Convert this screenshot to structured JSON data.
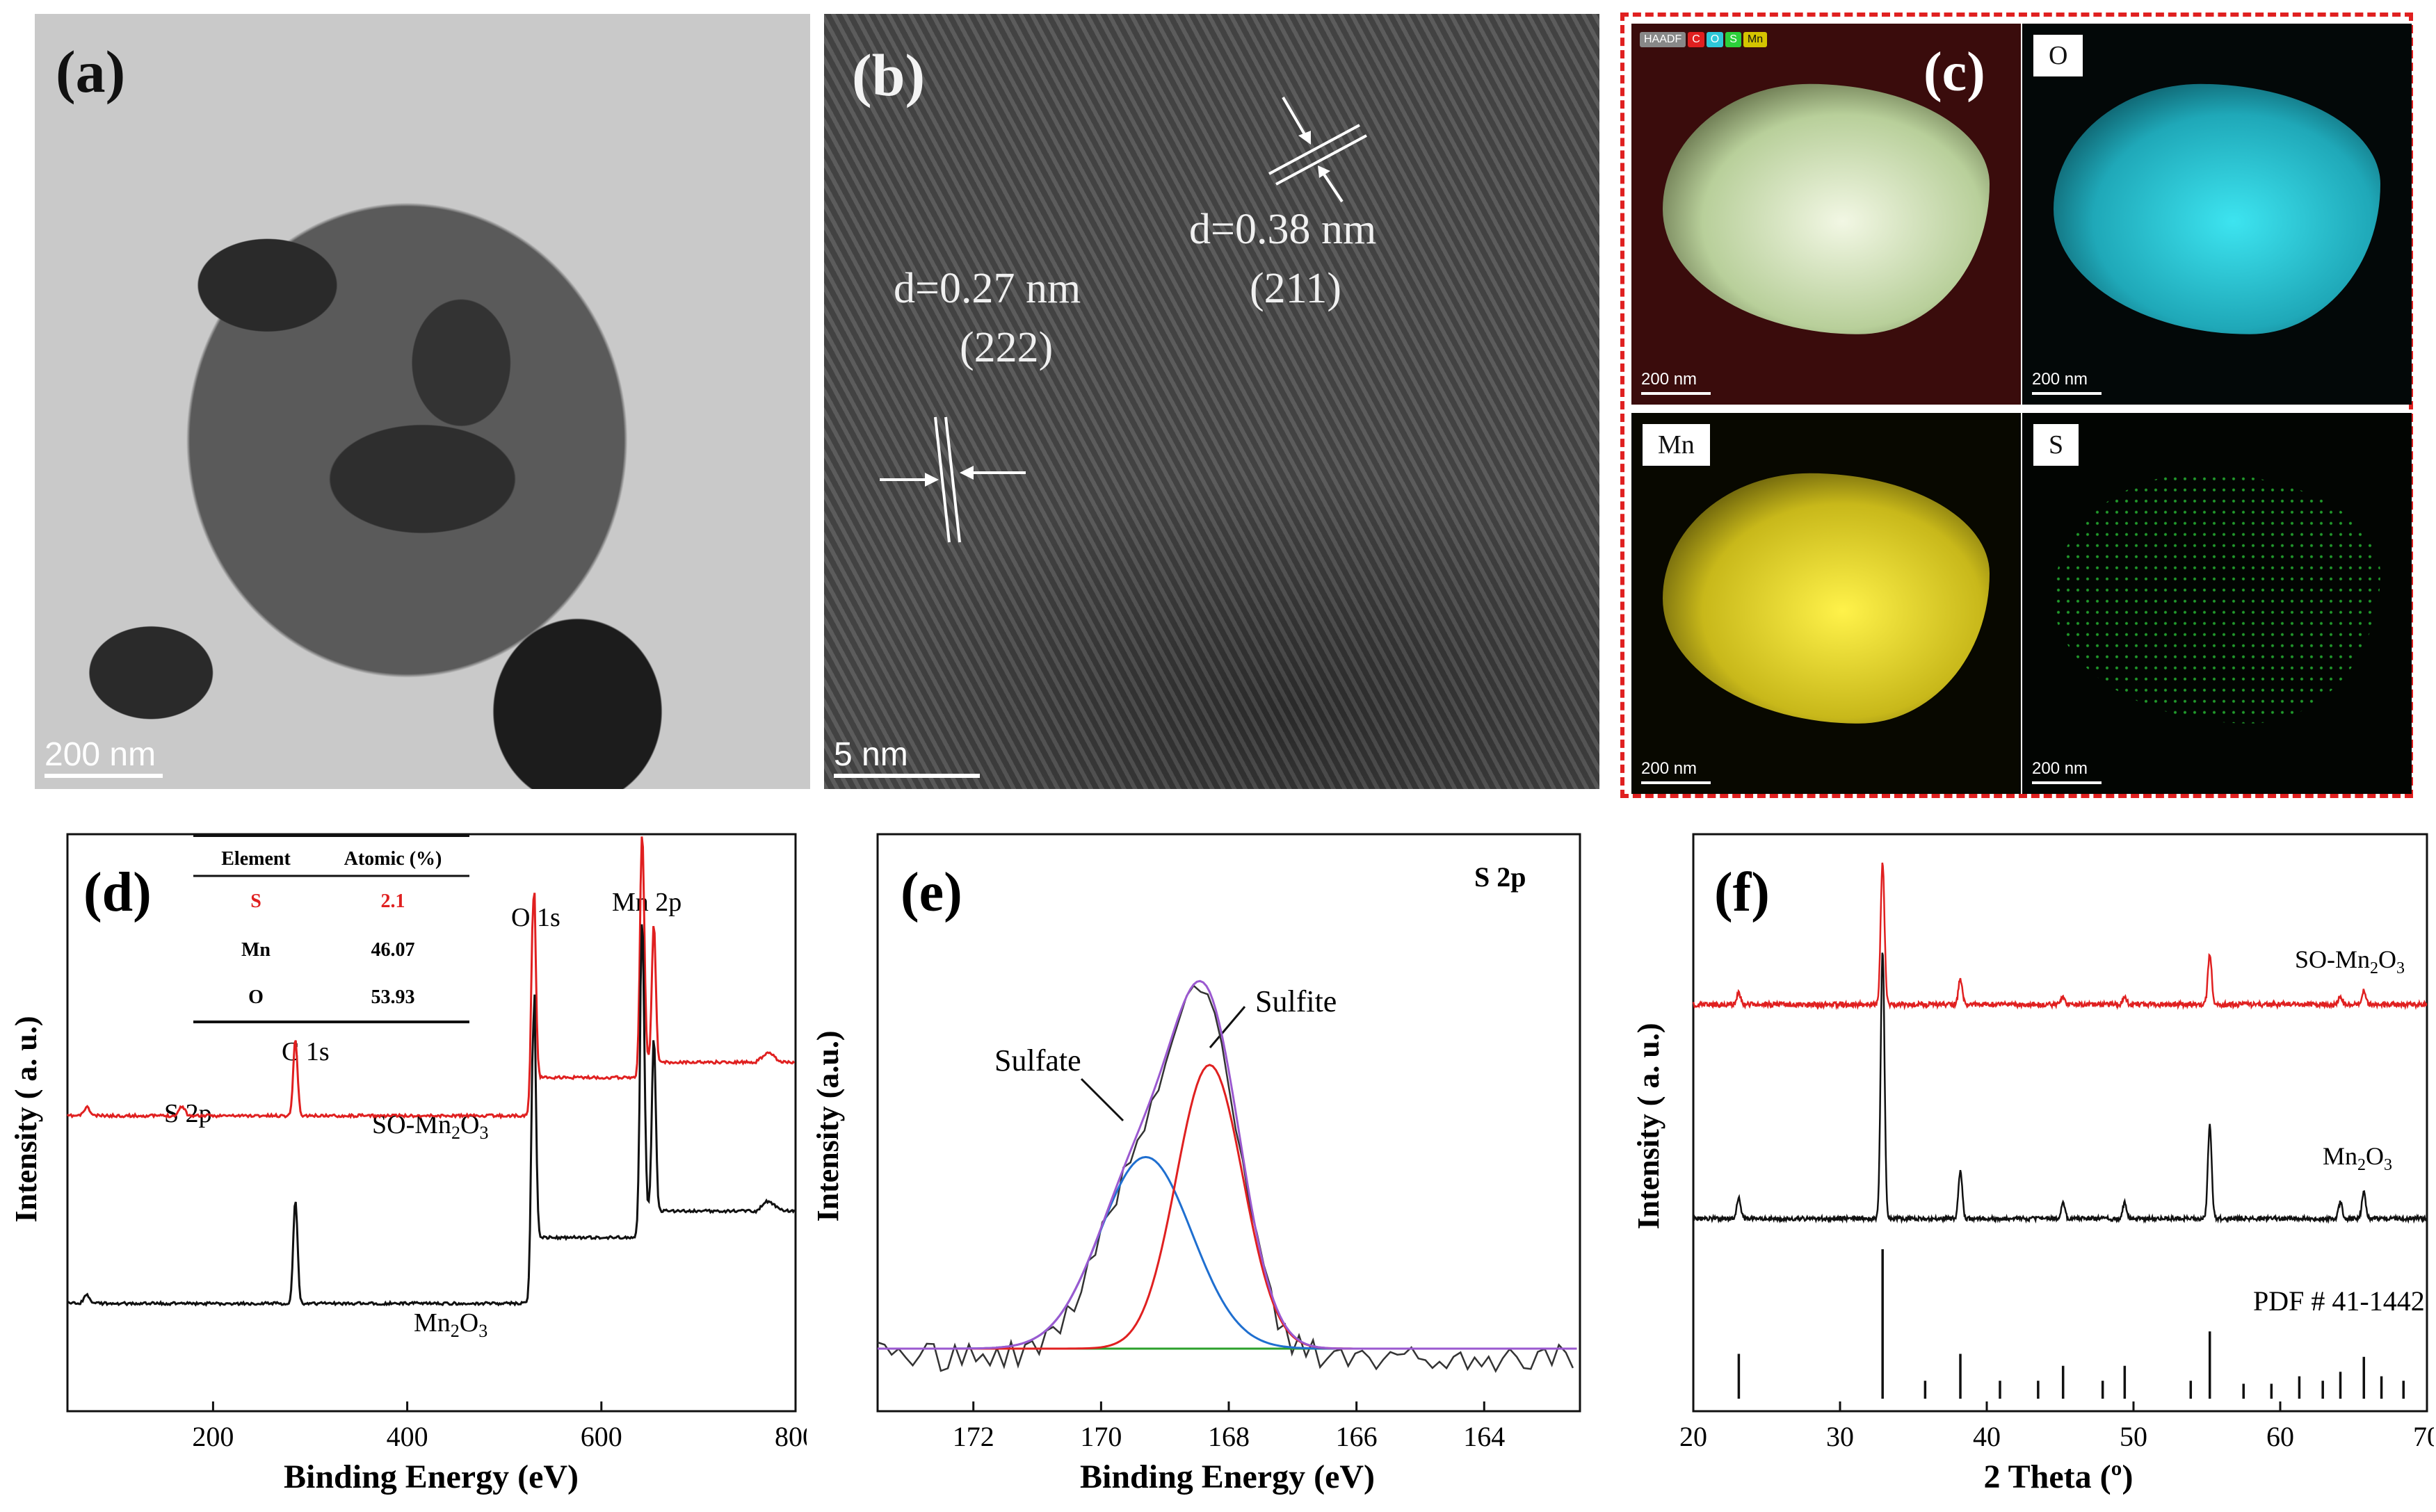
{
  "panel_a": {
    "label": "(a)",
    "scale": "200 nm"
  },
  "panel_b": {
    "label": "(b)",
    "scale": "5 nm",
    "d1": "d=0.27 nm",
    "hkl1": "(222)",
    "d2": "d=0.38 nm",
    "hkl2": "(211)"
  },
  "panel_c": {
    "label": "(c)",
    "maps": [
      {
        "tag": "HAADF",
        "scale": "200 nm"
      },
      {
        "tag": "O",
        "scale": "200 nm"
      },
      {
        "tag": "Mn",
        "scale": "200 nm"
      },
      {
        "tag": "S",
        "scale": "200 nm"
      }
    ],
    "legend": [
      "HAADF",
      "C",
      "O",
      "S",
      "Mn"
    ],
    "colors": {
      "HAADF": "#cfe0b8",
      "O": "#2ec8d8",
      "Mn": "#e0d020",
      "S": "#2ccf3a",
      "border": "#e02020"
    }
  },
  "chart_data": [
    {
      "type": "line",
      "panel": "(d)",
      "xlabel": "Binding Energy (eV)",
      "ylabel": "Intensity ( a. u.)",
      "xlim": [
        50,
        800
      ],
      "xticks": [
        200,
        400,
        600,
        800
      ],
      "series": [
        {
          "name": "SO-Mn2O3",
          "color": "#e02020"
        },
        {
          "name": "Mn2O3",
          "color": "#111111"
        }
      ],
      "annotations": [
        "S 2p",
        "C 1s",
        "O 1s",
        "Mn 2p"
      ],
      "peaks": [
        {
          "label": "S 2p",
          "x": 168
        },
        {
          "label": "C 1s",
          "x": 284.8
        },
        {
          "label": "O 1s",
          "x": 530
        },
        {
          "label": "Mn 2p",
          "x": 642
        }
      ],
      "inset_table": {
        "headers": [
          "Element",
          "Atomic (%)"
        ],
        "rows": [
          [
            "S",
            "2.1"
          ],
          [
            "Mn",
            "46.07"
          ],
          [
            "O",
            "53.93"
          ]
        ]
      }
    },
    {
      "type": "line",
      "panel": "(e)",
      "title": "S 2p",
      "xlabel": "Binding Energy (eV)",
      "ylabel": "Intensity (a.u.)",
      "xlim": [
        173.5,
        162.5
      ],
      "xticks": [
        172,
        170,
        168,
        166,
        164
      ],
      "components": [
        {
          "name": "Sulfate",
          "center": 169.3,
          "height": 0.52,
          "color": "#1f6fd0"
        },
        {
          "name": "Sulfite",
          "center": 168.3,
          "height": 0.77,
          "color": "#e02020"
        }
      ],
      "envelope_color": "#9b59d0",
      "baseline_color": "#2ca02c",
      "raw_color": "#333333",
      "peak_max_x": 168.5
    },
    {
      "type": "line",
      "panel": "(f)",
      "xlabel": "2 Theta (º)",
      "ylabel": "Intensity ( a. u.)",
      "xlim": [
        20,
        70
      ],
      "xticks": [
        20,
        30,
        40,
        50,
        60,
        70
      ],
      "series": [
        {
          "name": "SO-Mn2O3",
          "color": "#e02020"
        },
        {
          "name": "Mn2O3",
          "color": "#111111"
        }
      ],
      "reference": "PDF # 41-1442",
      "peaks": [
        23.1,
        32.9,
        38.2,
        45.2,
        49.4,
        55.2,
        64.1,
        65.7
      ],
      "reference_lines": [
        [
          23.1,
          0.3
        ],
        [
          32.9,
          1.0
        ],
        [
          35.8,
          0.12
        ],
        [
          38.2,
          0.3
        ],
        [
          40.9,
          0.12
        ],
        [
          43.5,
          0.12
        ],
        [
          45.2,
          0.22
        ],
        [
          47.9,
          0.12
        ],
        [
          49.4,
          0.22
        ],
        [
          53.9,
          0.12
        ],
        [
          55.2,
          0.45
        ],
        [
          57.5,
          0.1
        ],
        [
          59.4,
          0.1
        ],
        [
          61.3,
          0.15
        ],
        [
          62.9,
          0.12
        ],
        [
          64.1,
          0.18
        ],
        [
          65.7,
          0.28
        ],
        [
          66.9,
          0.15
        ],
        [
          68.4,
          0.12
        ]
      ]
    }
  ]
}
